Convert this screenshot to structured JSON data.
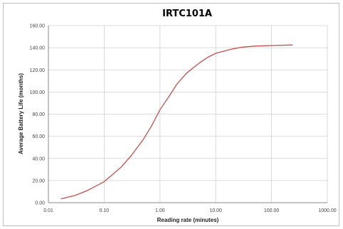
{
  "chart_data": {
    "type": "line",
    "title": "IRTC101A",
    "xlabel": "Reading rate (minutes)",
    "ylabel": "Average Battery Life (months)",
    "x_scale": "log",
    "xlim": [
      0.01,
      1000
    ],
    "ylim": [
      0,
      160
    ],
    "x_ticks": [
      "0.01",
      "0.10",
      "1.00",
      "10.00",
      "100.00",
      "1000.00"
    ],
    "y_ticks": [
      "0.00",
      "20.00",
      "40.00",
      "60.00",
      "80.00",
      "100.00",
      "120.00",
      "140.00",
      "160.00"
    ],
    "grid": true,
    "legend": "none",
    "series": [
      {
        "color": "#c0504d",
        "x": [
          0.0167,
          0.03,
          0.05,
          0.1,
          0.2,
          0.3,
          0.5,
          0.7,
          1.0,
          1.5,
          2,
          3,
          5,
          7,
          10,
          20,
          30,
          50,
          100,
          240
        ],
        "y": [
          3.5,
          6.5,
          11,
          19,
          32,
          42,
          57,
          69,
          84,
          97,
          107,
          117,
          126,
          131,
          135,
          139,
          140.5,
          141.5,
          142,
          142.5
        ]
      }
    ]
  }
}
